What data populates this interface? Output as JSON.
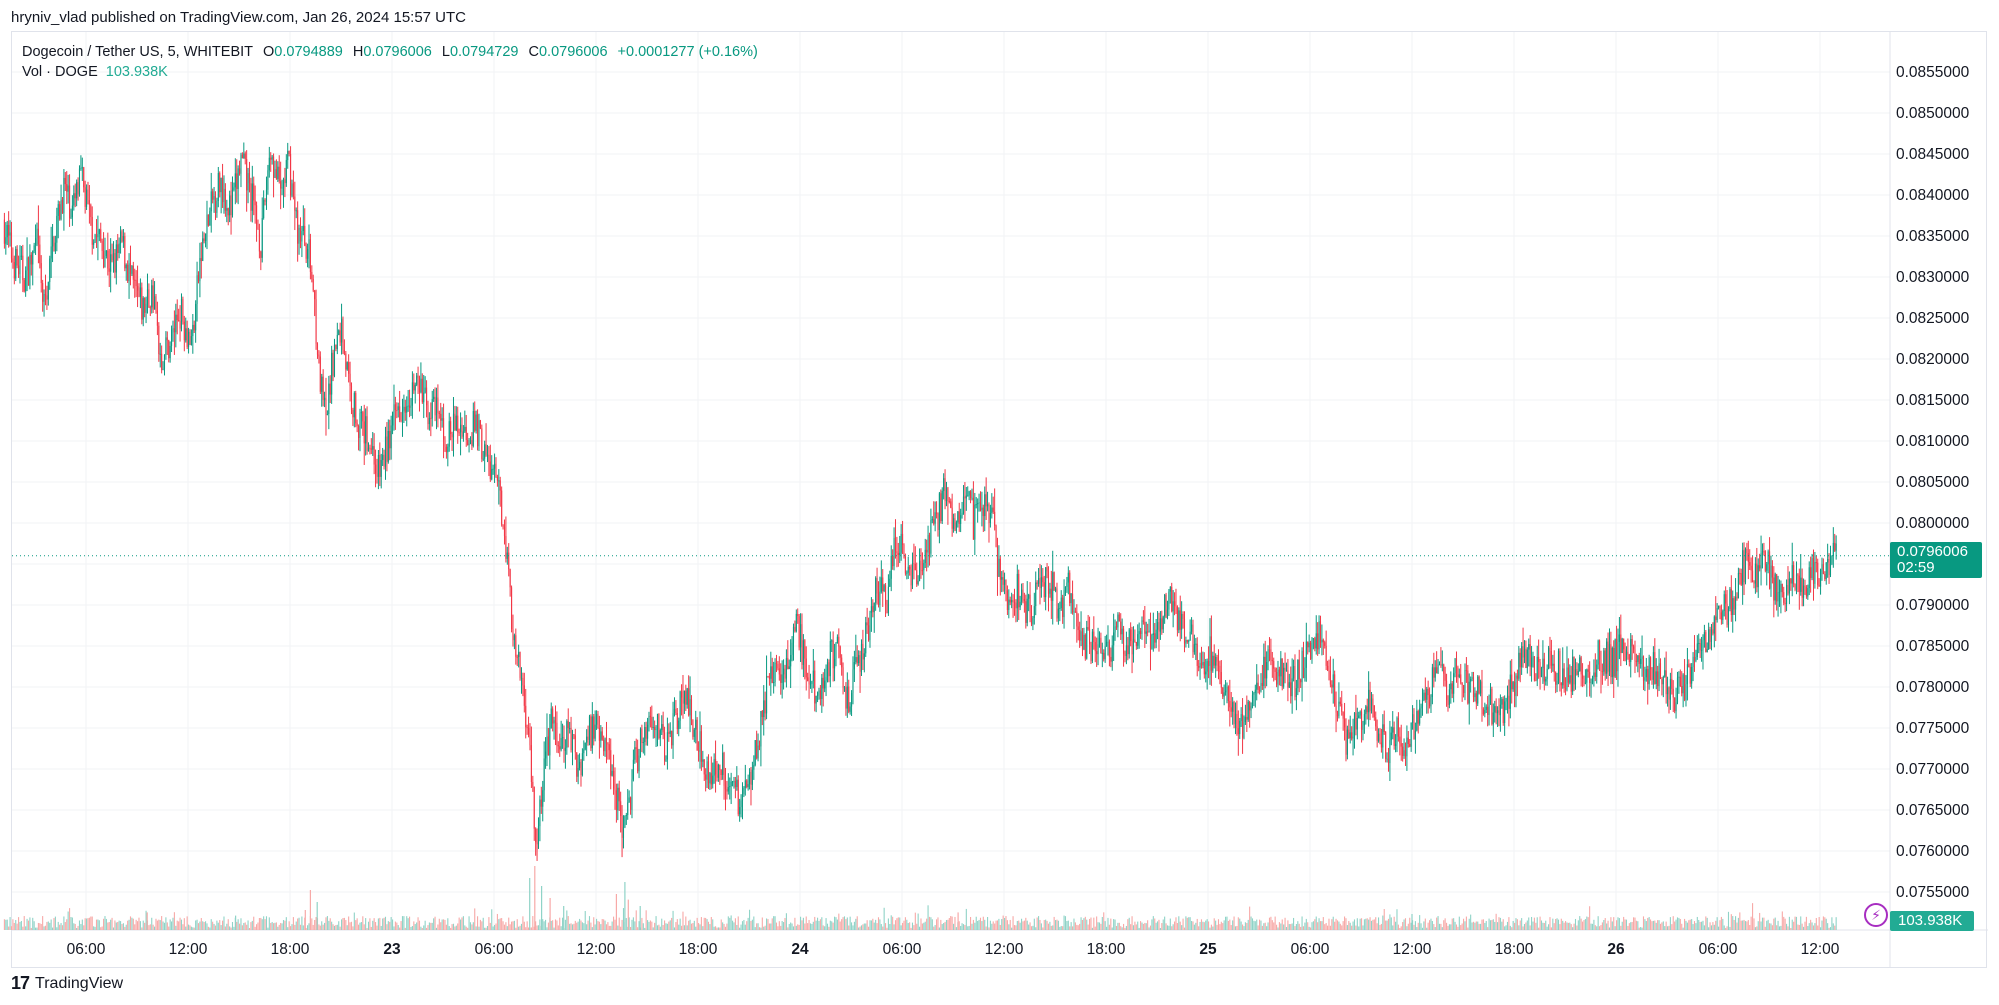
{
  "header": {
    "publish_line": "hryniv_vlad published on TradingView.com, Jan 26, 2024 15:57 UTC"
  },
  "legend": {
    "symbol": "Dogecoin / Tether US, 5, WHITEBIT",
    "o_label": "O",
    "o_value": "0.0794889",
    "h_label": "H",
    "h_value": "0.0796006",
    "l_label": "L",
    "l_value": "0.0794729",
    "c_label": "C",
    "c_value": "0.0796006",
    "change": "+0.0001277 (+0.16%)",
    "vol_label": "Vol · DOGE",
    "vol_value": "103.938K"
  },
  "badges": {
    "last_price": "0.0796006",
    "countdown": "02:59",
    "volume": "103.938K",
    "bolt_icon": "⚡"
  },
  "colors": {
    "up": "#089981",
    "down": "#f23645",
    "vol_up": "#8fd3c7",
    "vol_down": "#f7a9a7",
    "grid": "#f2f3f5",
    "price_line": "#089981",
    "bolt": "#a72dc1"
  },
  "logo": {
    "mark": "17",
    "text": "TradingView"
  },
  "chart_data": {
    "type": "candlestick",
    "title": "Dogecoin / Tether US, 5, WHITEBIT",
    "interval": "5",
    "ylim": [
      0.0752,
      0.0858
    ],
    "price_ticks": [
      "0.0855000",
      "0.0850000",
      "0.0845000",
      "0.0840000",
      "0.0835000",
      "0.0830000",
      "0.0825000",
      "0.0820000",
      "0.0815000",
      "0.0810000",
      "0.0805000",
      "0.0800000",
      "0.0795000",
      "0.0790000",
      "0.0785000",
      "0.0780000",
      "0.0775000",
      "0.0770000",
      "0.0765000",
      "0.0760000",
      "0.0755000"
    ],
    "time_ticks": [
      {
        "label": "06:00",
        "hours": 6,
        "day": false
      },
      {
        "label": "12:00",
        "hours": 12,
        "day": false
      },
      {
        "label": "18:00",
        "hours": 18,
        "day": false
      },
      {
        "label": "23",
        "hours": 24,
        "day": true
      },
      {
        "label": "06:00",
        "hours": 30,
        "day": false
      },
      {
        "label": "12:00",
        "hours": 36,
        "day": false
      },
      {
        "label": "18:00",
        "hours": 42,
        "day": false
      },
      {
        "label": "24",
        "hours": 48,
        "day": true
      },
      {
        "label": "06:00",
        "hours": 54,
        "day": false
      },
      {
        "label": "12:00",
        "hours": 60,
        "day": false
      },
      {
        "label": "18:00",
        "hours": 66,
        "day": false
      },
      {
        "label": "25",
        "hours": 72,
        "day": true
      },
      {
        "label": "06:00",
        "hours": 78,
        "day": false
      },
      {
        "label": "12:00",
        "hours": 84,
        "day": false
      },
      {
        "label": "18:00",
        "hours": 90,
        "day": false
      },
      {
        "label": "26",
        "hours": 96,
        "day": true
      },
      {
        "label": "06:00",
        "hours": 102,
        "day": false
      },
      {
        "label": "12:00",
        "hours": 108,
        "day": false
      }
    ],
    "price_path": [
      [
        1.2,
        0.0837
      ],
      [
        1.8,
        0.0832
      ],
      [
        2.5,
        0.083
      ],
      [
        3.2,
        0.0834
      ],
      [
        3.6,
        0.0826
      ],
      [
        4.2,
        0.0835
      ],
      [
        4.8,
        0.0841
      ],
      [
        5.3,
        0.0838
      ],
      [
        5.8,
        0.0842
      ],
      [
        6.4,
        0.0836
      ],
      [
        7.0,
        0.0834
      ],
      [
        7.6,
        0.0831
      ],
      [
        8.2,
        0.0834
      ],
      [
        8.8,
        0.0829
      ],
      [
        9.4,
        0.0826
      ],
      [
        10.0,
        0.0828
      ],
      [
        10.5,
        0.082
      ],
      [
        11.0,
        0.0822
      ],
      [
        11.6,
        0.0826
      ],
      [
        12.3,
        0.0822
      ],
      [
        12.8,
        0.0832
      ],
      [
        13.4,
        0.0838
      ],
      [
        14.0,
        0.0842
      ],
      [
        14.6,
        0.0838
      ],
      [
        15.2,
        0.0844
      ],
      [
        15.8,
        0.084
      ],
      [
        16.4,
        0.0834
      ],
      [
        16.9,
        0.0846
      ],
      [
        17.5,
        0.084
      ],
      [
        18.0,
        0.0844
      ],
      [
        18.5,
        0.0836
      ],
      [
        19.1,
        0.0834
      ],
      [
        19.5,
        0.0828
      ],
      [
        19.8,
        0.0818
      ],
      [
        20.2,
        0.0812
      ],
      [
        20.6,
        0.082
      ],
      [
        21.1,
        0.0824
      ],
      [
        21.6,
        0.0816
      ],
      [
        22.2,
        0.0812
      ],
      [
        22.8,
        0.081
      ],
      [
        23.3,
        0.0806
      ],
      [
        23.9,
        0.081
      ],
      [
        24.4,
        0.0814
      ],
      [
        25.0,
        0.0816
      ],
      [
        25.6,
        0.0817
      ],
      [
        26.2,
        0.0814
      ],
      [
        26.8,
        0.0813
      ],
      [
        27.3,
        0.081
      ],
      [
        27.9,
        0.0812
      ],
      [
        28.5,
        0.0811
      ],
      [
        29.0,
        0.0812
      ],
      [
        29.6,
        0.0808
      ],
      [
        30.2,
        0.0805
      ],
      [
        30.7,
        0.08
      ],
      [
        31.0,
        0.0792
      ],
      [
        31.3,
        0.0784
      ],
      [
        31.8,
        0.078
      ],
      [
        32.2,
        0.0772
      ],
      [
        32.6,
        0.076
      ],
      [
        33.0,
        0.077
      ],
      [
        33.5,
        0.0776
      ],
      [
        34.0,
        0.0772
      ],
      [
        34.5,
        0.0775
      ],
      [
        35.0,
        0.077
      ],
      [
        35.6,
        0.0774
      ],
      [
        36.2,
        0.0776
      ],
      [
        36.8,
        0.0772
      ],
      [
        37.4,
        0.0766
      ],
      [
        37.8,
        0.0762
      ],
      [
        38.3,
        0.077
      ],
      [
        38.9,
        0.0775
      ],
      [
        39.5,
        0.0777
      ],
      [
        40.1,
        0.0772
      ],
      [
        40.7,
        0.0776
      ],
      [
        41.2,
        0.0779
      ],
      [
        41.8,
        0.0776
      ],
      [
        42.3,
        0.0772
      ],
      [
        42.8,
        0.0769
      ],
      [
        43.4,
        0.0771
      ],
      [
        44.0,
        0.0768
      ],
      [
        44.6,
        0.0766
      ],
      [
        45.2,
        0.077
      ],
      [
        45.7,
        0.0775
      ],
      [
        46.2,
        0.078
      ],
      [
        46.8,
        0.0783
      ],
      [
        47.4,
        0.0782
      ],
      [
        47.9,
        0.0788
      ],
      [
        48.5,
        0.0781
      ],
      [
        49.1,
        0.0779
      ],
      [
        49.7,
        0.0783
      ],
      [
        50.3,
        0.0785
      ],
      [
        50.9,
        0.0778
      ],
      [
        51.4,
        0.0782
      ],
      [
        52.0,
        0.0787
      ],
      [
        52.6,
        0.0792
      ],
      [
        53.2,
        0.079
      ],
      [
        53.7,
        0.0798
      ],
      [
        54.3,
        0.0796
      ],
      [
        54.9,
        0.0793
      ],
      [
        55.5,
        0.0796
      ],
      [
        56.0,
        0.08
      ],
      [
        56.6,
        0.0804
      ],
      [
        57.2,
        0.08
      ],
      [
        57.8,
        0.0805
      ],
      [
        58.3,
        0.08
      ],
      [
        58.9,
        0.0803
      ],
      [
        59.4,
        0.08
      ],
      [
        59.8,
        0.0794
      ],
      [
        60.3,
        0.079
      ],
      [
        60.9,
        0.0792
      ],
      [
        61.5,
        0.0789
      ],
      [
        62.1,
        0.0791
      ],
      [
        62.7,
        0.0793
      ],
      [
        63.3,
        0.079
      ],
      [
        63.9,
        0.0792
      ],
      [
        64.4,
        0.0788
      ],
      [
        65.0,
        0.0785
      ],
      [
        65.6,
        0.0786
      ],
      [
        66.2,
        0.0784
      ],
      [
        66.8,
        0.0787
      ],
      [
        67.4,
        0.0785
      ],
      [
        68.0,
        0.0787
      ],
      [
        68.6,
        0.0786
      ],
      [
        69.2,
        0.0788
      ],
      [
        69.8,
        0.0791
      ],
      [
        70.4,
        0.0788
      ],
      [
        71.0,
        0.0786
      ],
      [
        71.6,
        0.0783
      ],
      [
        72.2,
        0.0784
      ],
      [
        72.8,
        0.078
      ],
      [
        73.4,
        0.0777
      ],
      [
        74.0,
        0.0775
      ],
      [
        74.6,
        0.0778
      ],
      [
        75.2,
        0.0781
      ],
      [
        75.8,
        0.0783
      ],
      [
        76.4,
        0.0782
      ],
      [
        77.0,
        0.078
      ],
      [
        77.6,
        0.0783
      ],
      [
        78.2,
        0.0784
      ],
      [
        78.7,
        0.0787
      ],
      [
        79.2,
        0.0783
      ],
      [
        79.7,
        0.0778
      ],
      [
        80.3,
        0.0773
      ],
      [
        80.9,
        0.0776
      ],
      [
        81.5,
        0.0778
      ],
      [
        82.1,
        0.0775
      ],
      [
        82.6,
        0.0772
      ],
      [
        83.2,
        0.0774
      ],
      [
        83.8,
        0.0773
      ],
      [
        84.4,
        0.0776
      ],
      [
        85.0,
        0.0779
      ],
      [
        85.6,
        0.0782
      ],
      [
        86.2,
        0.078
      ],
      [
        86.8,
        0.0782
      ],
      [
        87.4,
        0.078
      ],
      [
        88.0,
        0.0779
      ],
      [
        88.6,
        0.0778
      ],
      [
        89.2,
        0.0777
      ],
      [
        89.8,
        0.0779
      ],
      [
        90.4,
        0.0783
      ],
      [
        91.0,
        0.0784
      ],
      [
        91.6,
        0.0782
      ],
      [
        92.2,
        0.0783
      ],
      [
        92.8,
        0.0782
      ],
      [
        93.4,
        0.0781
      ],
      [
        94.0,
        0.0783
      ],
      [
        94.6,
        0.0782
      ],
      [
        95.2,
        0.0784
      ],
      [
        95.8,
        0.0783
      ],
      [
        96.4,
        0.0785
      ],
      [
        97.0,
        0.0784
      ],
      [
        97.6,
        0.0782
      ],
      [
        98.2,
        0.0783
      ],
      [
        98.8,
        0.0781
      ],
      [
        99.4,
        0.0779
      ],
      [
        100.0,
        0.078
      ],
      [
        100.6,
        0.0783
      ],
      [
        101.2,
        0.0785
      ],
      [
        101.8,
        0.0787
      ],
      [
        102.4,
        0.0789
      ],
      [
        103.0,
        0.0791
      ],
      [
        103.6,
        0.0795
      ],
      [
        104.2,
        0.0793
      ],
      [
        104.8,
        0.0796
      ],
      [
        105.4,
        0.0792
      ],
      [
        106.0,
        0.079
      ],
      [
        106.6,
        0.0794
      ],
      [
        107.2,
        0.0792
      ],
      [
        107.8,
        0.0795
      ],
      [
        108.4,
        0.0793
      ],
      [
        109.0,
        0.0796
      ]
    ],
    "last_price": 0.0796006,
    "volume_spikes": [
      [
        19.2,
        0.5
      ],
      [
        19.6,
        0.35
      ],
      [
        18.9,
        0.25
      ],
      [
        32.1,
        0.65
      ],
      [
        32.4,
        0.8
      ],
      [
        32.8,
        0.55
      ],
      [
        33.3,
        0.4
      ],
      [
        34.1,
        0.3
      ],
      [
        37.2,
        0.45
      ],
      [
        37.7,
        0.6
      ],
      [
        37.9,
        0.38
      ],
      [
        38.6,
        0.3
      ],
      [
        9.6,
        0.22
      ],
      [
        14.8,
        0.18
      ],
      [
        57.3,
        0.22
      ],
      [
        84.0,
        0.2
      ]
    ]
  }
}
